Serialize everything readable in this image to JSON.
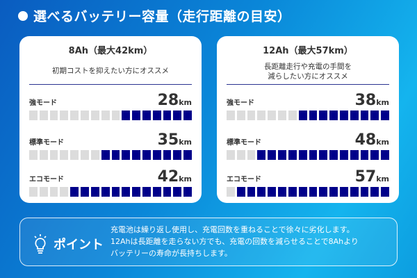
{
  "title": "選べるバッテリー容量（走行距離の目安）",
  "cards": [
    {
      "title": "8Ah（最大42km）",
      "subtitle": [
        "初期コストを抑えたい方にオススメ"
      ],
      "rows": [
        {
          "label": "強モード",
          "value": "28",
          "unit": "km",
          "filled": 7
        },
        {
          "label": "標準モード",
          "value": "35",
          "unit": "km",
          "filled": 9
        },
        {
          "label": "エコモード",
          "value": "42",
          "unit": "km",
          "filled": 12
        }
      ]
    },
    {
      "title": "12Ah（最大57km）",
      "subtitle": [
        "長距離走行や充電の手間を",
        "減らしたい方にオススメ"
      ],
      "rows": [
        {
          "label": "強モード",
          "value": "38",
          "unit": "km",
          "filled": 9
        },
        {
          "label": "標準モード",
          "value": "48",
          "unit": "km",
          "filled": 13
        },
        {
          "label": "エコモード",
          "value": "57",
          "unit": "km",
          "filled": 15
        }
      ]
    }
  ],
  "block_total": 16,
  "point": {
    "label": "ポイント",
    "icon": "lightbulb-icon",
    "lines": [
      "充電池は繰り返し使用し、充電回数を重ねることで徐々に劣化します。",
      "12Ahは長距離を走らない方でも、充電の回数を減らせることで8Ahより",
      "バッテリーの寿命が長持ちします。"
    ]
  },
  "colors": {
    "filled": "#00008a",
    "empty": "#dcdcdc"
  }
}
